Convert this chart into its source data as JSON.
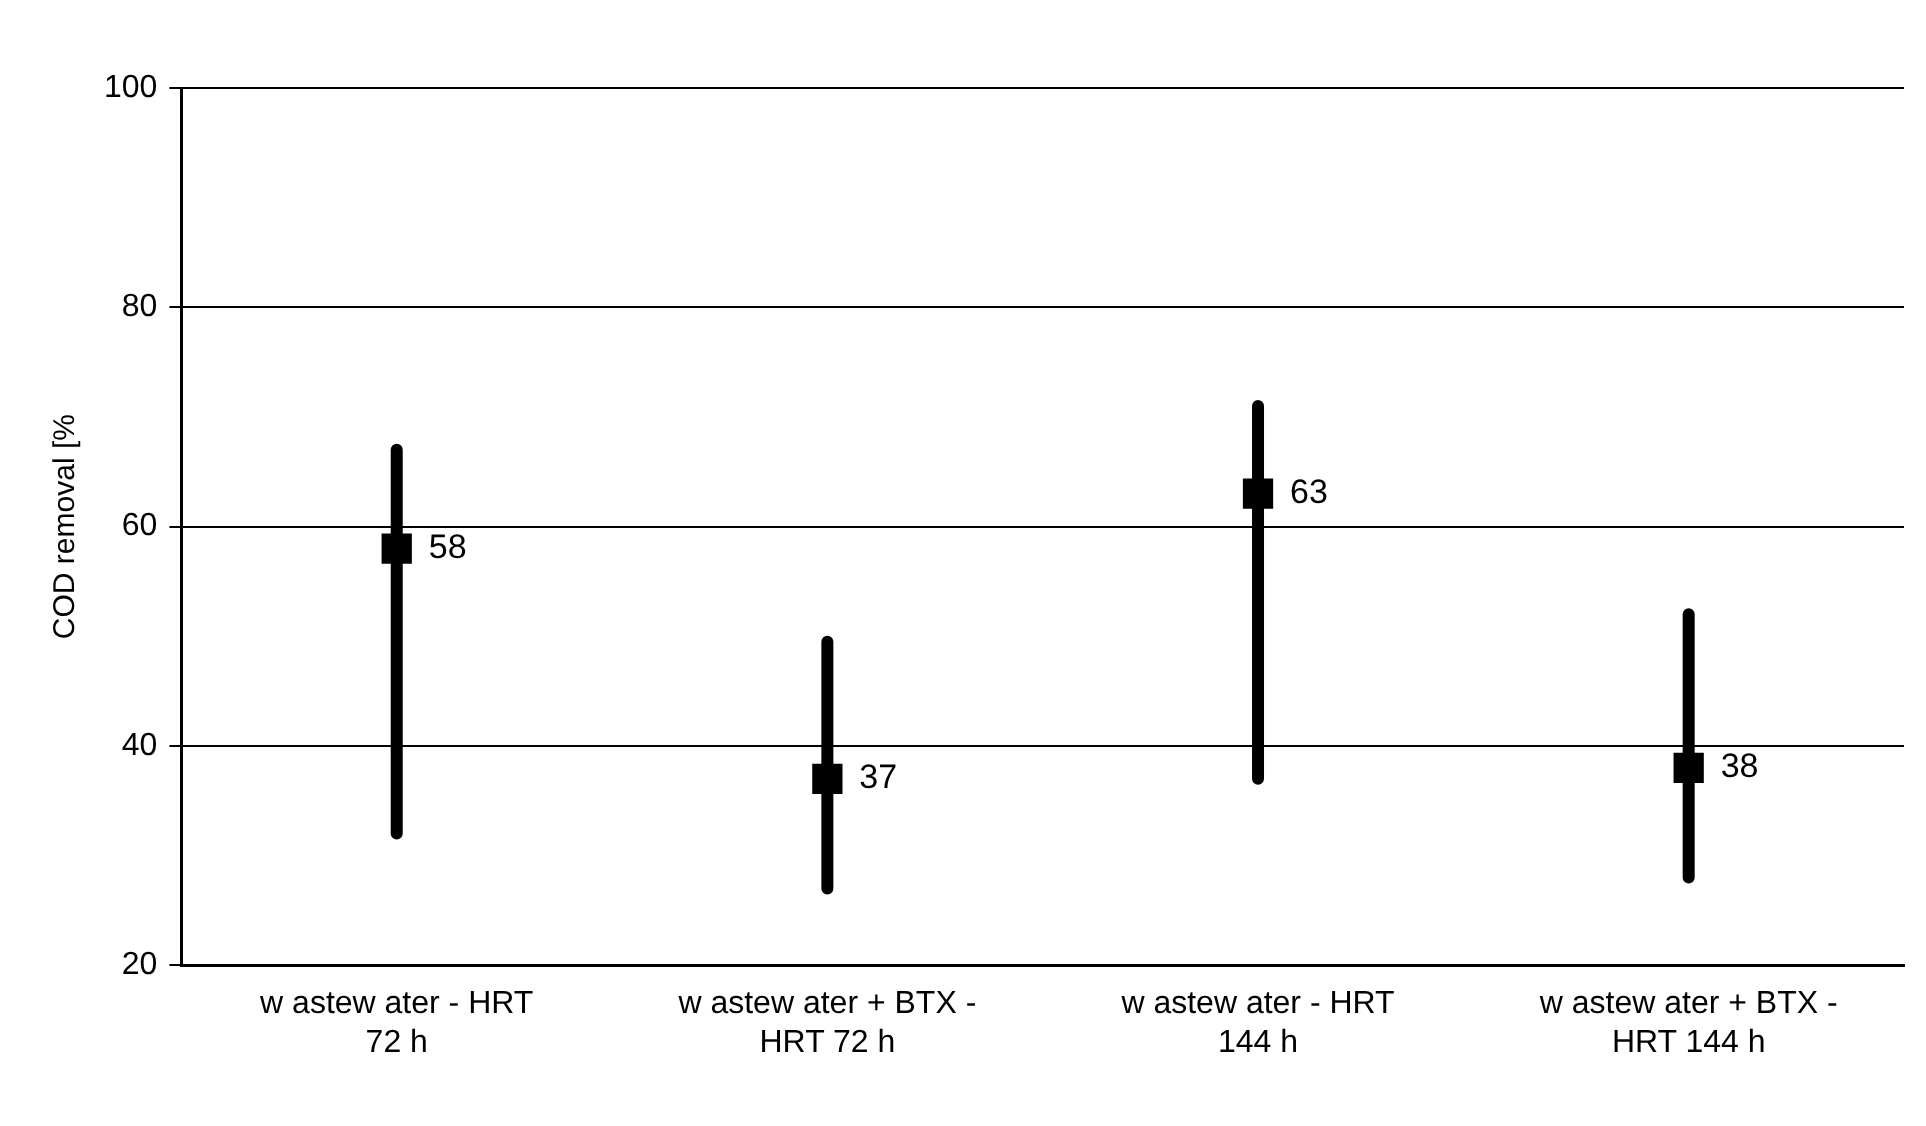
{
  "chart_data": {
    "type": "scatter",
    "ylabel": "COD removal [%",
    "categories": [
      "w astew ater - HRT 72 h",
      "w astew ater + BTX - HRT 72 h",
      "w astew ater - HRT 144 h",
      "w astew ater + BTX - HRT 144 h"
    ],
    "series": [
      {
        "color": "#000000",
        "values": [
          58,
          37,
          63,
          38
        ],
        "errors": [
          [
            32,
            67
          ],
          [
            27,
            49.5
          ],
          [
            37,
            71
          ],
          [
            28,
            52
          ]
        ]
      }
    ],
    "ylim": [
      20,
      100
    ],
    "yticks": [
      20,
      40,
      60,
      80,
      100
    ],
    "grid": "y",
    "marker": "square",
    "data_labels": true,
    "legend": false
  }
}
